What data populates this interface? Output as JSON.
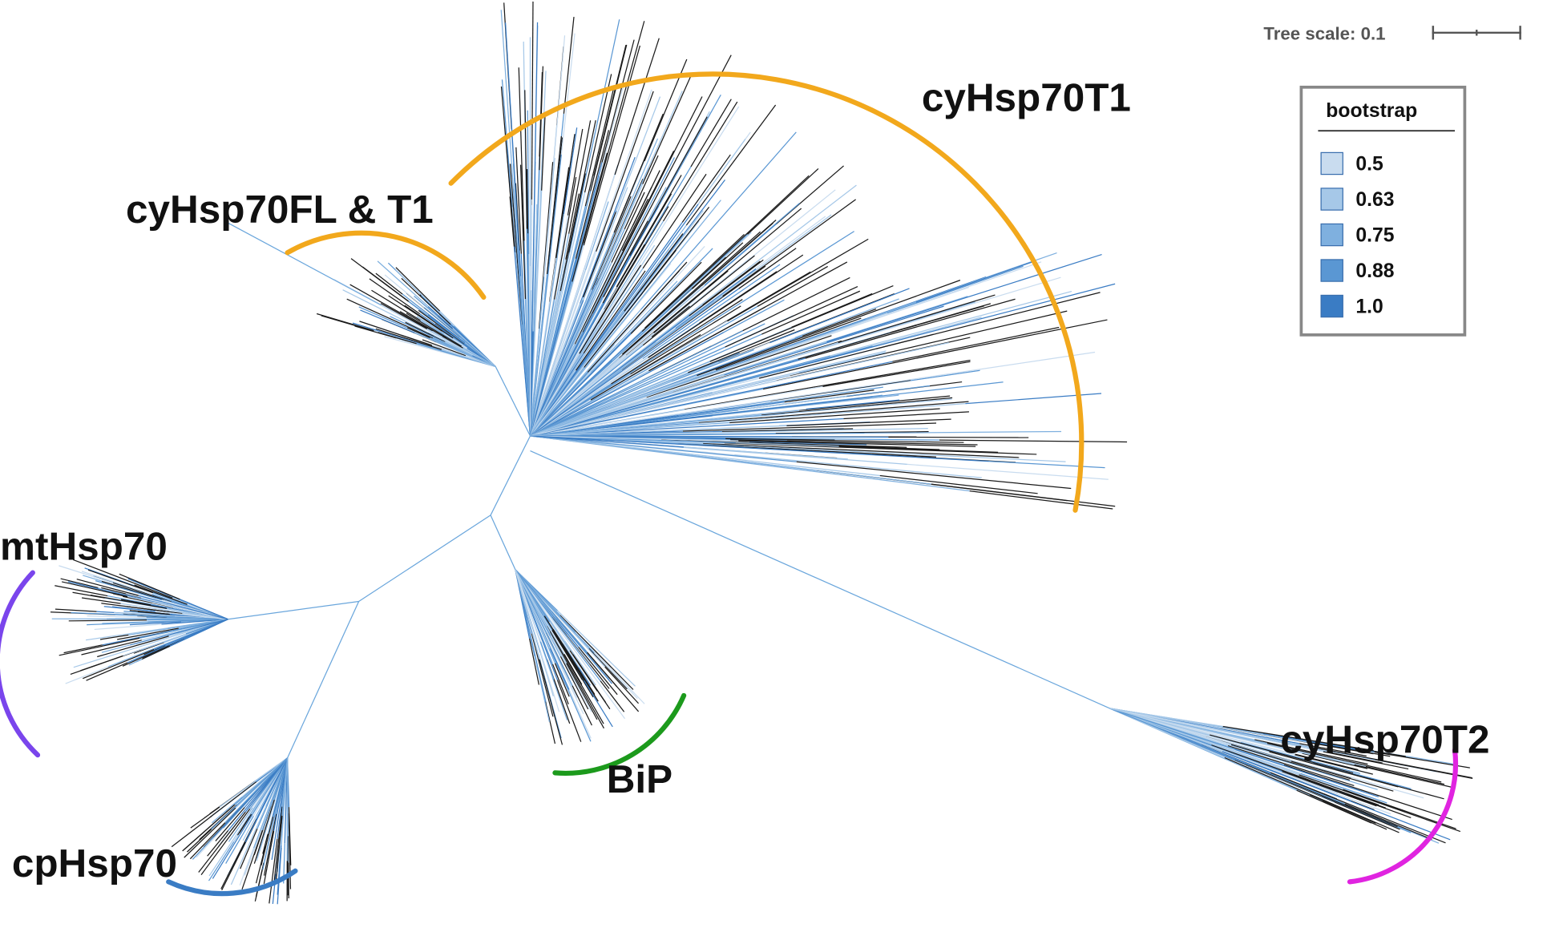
{
  "header": {
    "tree_scale": "Tree scale: 0.1"
  },
  "legend": {
    "title": "bootstrap",
    "items": [
      {
        "label": "0.5",
        "color": "#c9dcef"
      },
      {
        "label": "0.63",
        "color": "#a6c8e8"
      },
      {
        "label": "0.75",
        "color": "#7fb0df"
      },
      {
        "label": "0.88",
        "color": "#5a97d3"
      },
      {
        "label": "1.0",
        "color": "#3a7cc4"
      }
    ]
  },
  "clades": [
    {
      "label": "cyHsp70T1",
      "color": "#f2a81c"
    },
    {
      "label": "cyHsp70FL & T1",
      "color": "#f2a81c"
    },
    {
      "label": "mtHsp70",
      "color": "#7a45ec"
    },
    {
      "label": "BiP",
      "color": "#1c9a1c"
    },
    {
      "label": "cpHsp70",
      "color": "#3a7cc4"
    },
    {
      "label": "cyHsp70T2",
      "color": "#e024e0"
    }
  ]
}
